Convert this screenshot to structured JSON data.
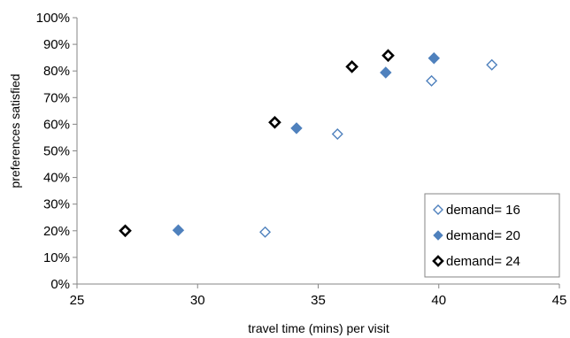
{
  "chart_data": {
    "type": "scatter",
    "title": "",
    "xlabel": "travel time (mins) per visit",
    "ylabel": "preferences satisfied",
    "xlim": [
      25,
      45
    ],
    "ylim": [
      0,
      100
    ],
    "x_ticks": [
      "25",
      "30",
      "35",
      "40",
      "45"
    ],
    "y_ticks": [
      "0%",
      "10%",
      "20%",
      "30%",
      "40%",
      "50%",
      "60%",
      "70%",
      "80%",
      "90%",
      "100%"
    ],
    "grid": false,
    "legend_position": "bottom-right",
    "series": [
      {
        "name": "demand= 16",
        "marker": "diamond-open",
        "color": "#4f81bd",
        "x": [
          32.8,
          35.8,
          39.7,
          42.2
        ],
        "y": [
          19.5,
          56.3,
          76.3,
          82.3
        ]
      },
      {
        "name": "demand= 20",
        "marker": "diamond-filled",
        "color": "#4f81bd",
        "x": [
          29.2,
          34.1,
          37.8,
          39.8
        ],
        "y": [
          20.2,
          58.5,
          79.4,
          84.8
        ]
      },
      {
        "name": "demand= 24",
        "marker": "diamond-open-bold",
        "color": "#000000",
        "x": [
          27.0,
          33.2,
          36.4,
          37.9
        ],
        "y": [
          20.0,
          60.7,
          81.6,
          85.8
        ]
      }
    ]
  }
}
